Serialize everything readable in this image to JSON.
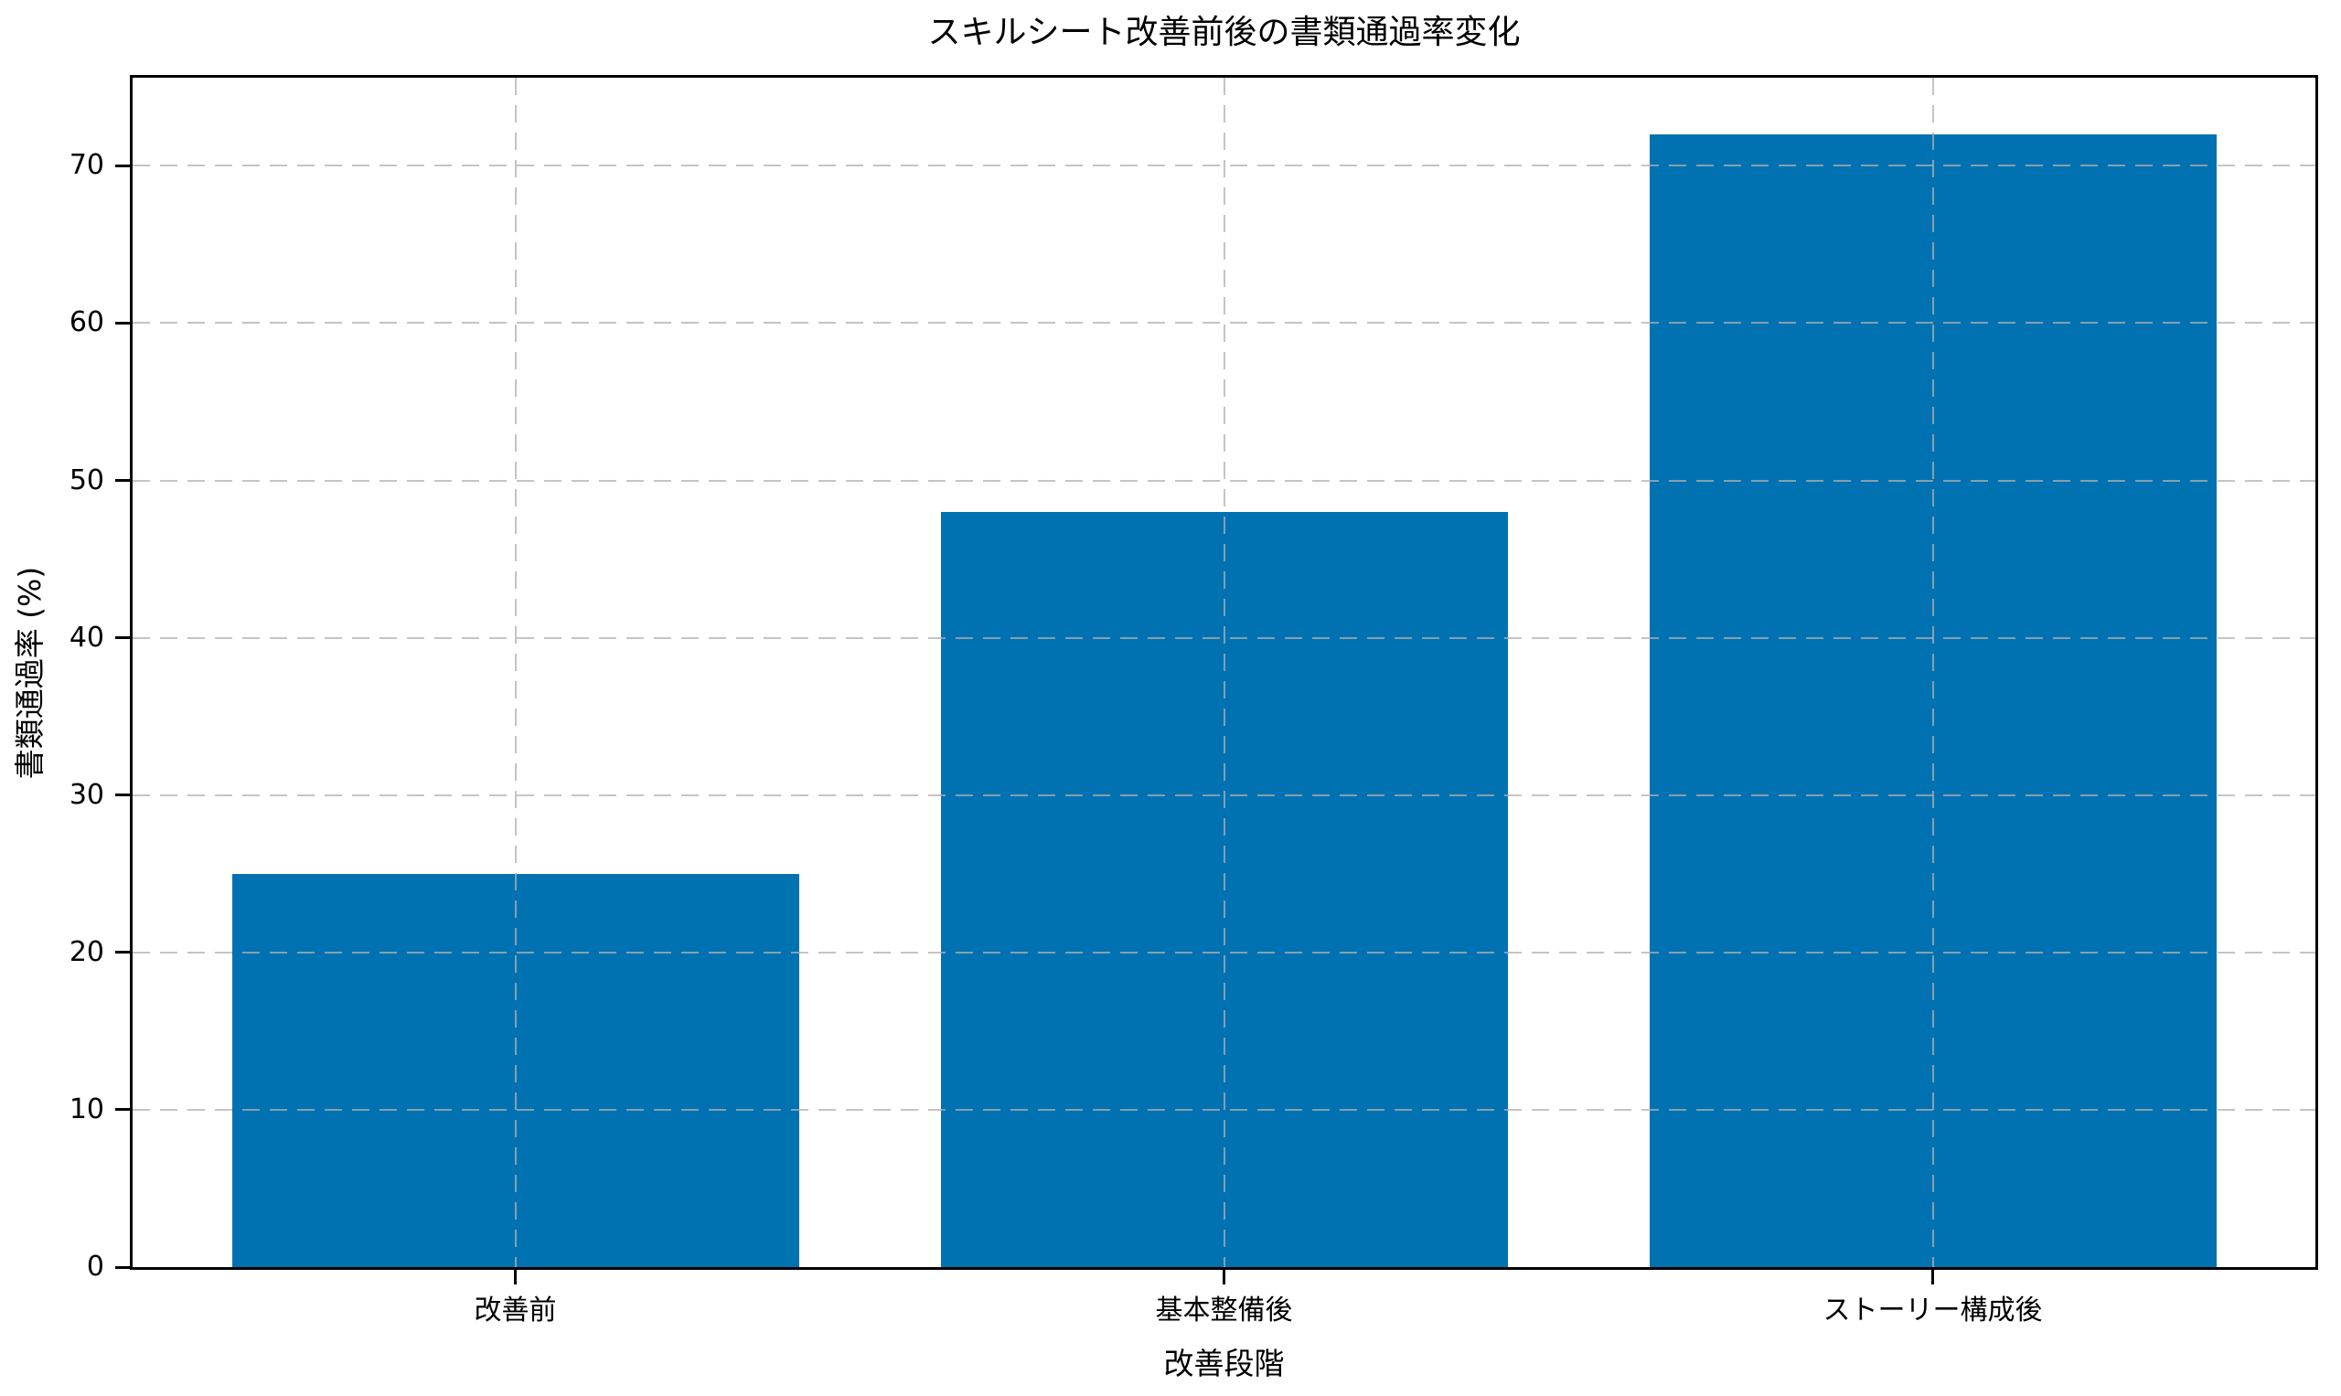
{
  "chart_data": {
    "type": "bar",
    "title": "スキルシート改善前後の書類通過率変化",
    "xlabel": "改善段階",
    "ylabel": "書類通過率 (%)",
    "categories": [
      "改善前",
      "基本整備後",
      "ストーリー構成後"
    ],
    "values": [
      25,
      48,
      72
    ],
    "yticks": [
      0,
      10,
      20,
      30,
      40,
      50,
      60,
      70
    ],
    "ylim": [
      0,
      75.6
    ],
    "bar_color": "#0072b2",
    "bar_width_ratio": 0.8,
    "grid": "dashed, both axes, drawn over bars",
    "legend": "none",
    "background_color": "#ffffff",
    "spine_color": "#000000"
  }
}
